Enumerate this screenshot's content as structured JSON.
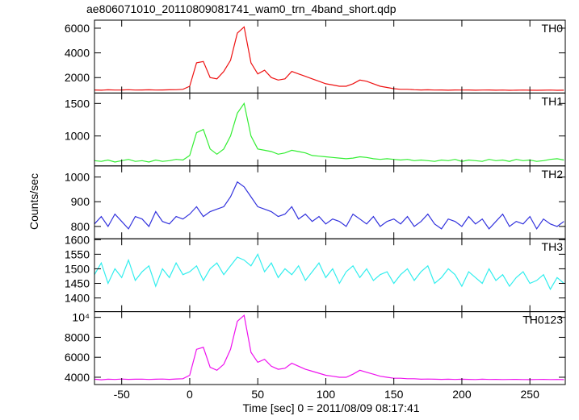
{
  "title": "ae806071010_20110809081741_wam0_trn_4band_short.qdp",
  "y_label": "Counts/sec",
  "x_label": "Time [sec] 0 = 2011/08/09 08:17:41",
  "chart_data": [
    {
      "type": "line",
      "label": "TH0",
      "color": "#ee1111",
      "x": [
        -70,
        -65,
        -60,
        -55,
        -50,
        -45,
        -40,
        -35,
        -30,
        -25,
        -20,
        -15,
        -10,
        -5,
        0,
        5,
        10,
        15,
        20,
        25,
        30,
        35,
        40,
        45,
        50,
        55,
        60,
        65,
        70,
        75,
        80,
        85,
        90,
        95,
        100,
        105,
        110,
        115,
        120,
        125,
        130,
        135,
        140,
        145,
        150,
        155,
        160,
        165,
        170,
        175,
        180,
        185,
        190,
        195,
        200,
        205,
        210,
        215,
        220,
        225,
        230,
        235,
        240,
        245,
        250,
        255,
        260,
        265,
        270,
        275
      ],
      "values": [
        1000,
        980,
        1010,
        990,
        1000,
        1020,
        990,
        1000,
        1010,
        990,
        1000,
        1010,
        1020,
        1050,
        1300,
        3200,
        3300,
        2000,
        1900,
        2500,
        3400,
        5600,
        6100,
        3200,
        2300,
        2600,
        2000,
        1800,
        1900,
        2500,
        2300,
        2100,
        1900,
        1700,
        1500,
        1400,
        1300,
        1300,
        1500,
        1800,
        1700,
        1500,
        1300,
        1200,
        1100,
        1050,
        1050,
        1020,
        1000,
        1010,
        990,
        1000,
        980,
        1000,
        990,
        1000,
        980,
        990,
        1000,
        980,
        990,
        970,
        980,
        990,
        980,
        970,
        980,
        990,
        970,
        980
      ],
      "xlim": [
        -70,
        276
      ],
      "ylim": [
        750,
        6650
      ],
      "yticks": [
        2000,
        4000,
        6000
      ]
    },
    {
      "type": "line",
      "label": "TH1",
      "color": "#33ee33",
      "x": [
        -70,
        -65,
        -60,
        -55,
        -50,
        -45,
        -40,
        -35,
        -30,
        -25,
        -20,
        -15,
        -10,
        -5,
        0,
        5,
        10,
        15,
        20,
        25,
        30,
        35,
        40,
        45,
        50,
        55,
        60,
        65,
        70,
        75,
        80,
        85,
        90,
        95,
        100,
        105,
        110,
        115,
        120,
        125,
        130,
        135,
        140,
        145,
        150,
        155,
        160,
        165,
        170,
        175,
        180,
        185,
        190,
        195,
        200,
        205,
        210,
        215,
        220,
        225,
        230,
        235,
        240,
        245,
        250,
        255,
        260,
        265,
        270,
        275
      ],
      "values": [
        620,
        610,
        630,
        600,
        620,
        640,
        610,
        620,
        600,
        630,
        610,
        620,
        640,
        630,
        700,
        1050,
        1100,
        800,
        720,
        800,
        1000,
        1350,
        1500,
        1000,
        800,
        780,
        760,
        720,
        740,
        780,
        760,
        740,
        700,
        690,
        680,
        670,
        660,
        650,
        660,
        680,
        670,
        650,
        640,
        650,
        640,
        630,
        640,
        620,
        630,
        620,
        610,
        630,
        620,
        640,
        610,
        630,
        620,
        610,
        640,
        620,
        630,
        610,
        640,
        620,
        630,
        610,
        620,
        640,
        650,
        630
      ],
      "xlim": [
        -70,
        276
      ],
      "ylim": [
        540,
        1660
      ],
      "yticks": [
        1000,
        1500
      ]
    },
    {
      "type": "line",
      "label": "TH2",
      "color": "#3333dd",
      "x": [
        -70,
        -65,
        -60,
        -55,
        -50,
        -45,
        -40,
        -35,
        -30,
        -25,
        -20,
        -15,
        -10,
        -5,
        0,
        5,
        10,
        15,
        20,
        25,
        30,
        35,
        40,
        45,
        50,
        55,
        60,
        65,
        70,
        75,
        80,
        85,
        90,
        95,
        100,
        105,
        110,
        115,
        120,
        125,
        130,
        135,
        140,
        145,
        150,
        155,
        160,
        165,
        170,
        175,
        180,
        185,
        190,
        195,
        200,
        205,
        210,
        215,
        220,
        225,
        230,
        235,
        240,
        245,
        250,
        255,
        260,
        265,
        270,
        275
      ],
      "values": [
        810,
        840,
        800,
        850,
        820,
        790,
        840,
        830,
        800,
        860,
        820,
        810,
        840,
        830,
        850,
        880,
        840,
        860,
        870,
        880,
        920,
        980,
        960,
        920,
        880,
        870,
        860,
        840,
        850,
        880,
        830,
        850,
        820,
        840,
        810,
        830,
        820,
        800,
        850,
        830,
        810,
        840,
        800,
        820,
        830,
        810,
        840,
        800,
        820,
        850,
        810,
        790,
        830,
        820,
        800,
        840,
        810,
        830,
        790,
        820,
        850,
        800,
        820,
        810,
        840,
        790,
        830,
        810,
        800,
        820
      ],
      "xlim": [
        -70,
        276
      ],
      "ylim": [
        750,
        1045
      ],
      "yticks": [
        800,
        900,
        1000
      ]
    },
    {
      "type": "line",
      "label": "TH3",
      "color": "#33eeee",
      "x": [
        -70,
        -65,
        -60,
        -55,
        -50,
        -45,
        -40,
        -35,
        -30,
        -25,
        -20,
        -15,
        -10,
        -5,
        0,
        5,
        10,
        15,
        20,
        25,
        30,
        35,
        40,
        45,
        50,
        55,
        60,
        65,
        70,
        75,
        80,
        85,
        90,
        95,
        100,
        105,
        110,
        115,
        120,
        125,
        130,
        135,
        140,
        145,
        150,
        155,
        160,
        165,
        170,
        175,
        180,
        185,
        190,
        195,
        200,
        205,
        210,
        215,
        220,
        225,
        230,
        235,
        240,
        245,
        250,
        255,
        260,
        265,
        270,
        275
      ],
      "values": [
        1480,
        1520,
        1450,
        1500,
        1470,
        1530,
        1460,
        1490,
        1510,
        1440,
        1500,
        1470,
        1520,
        1480,
        1490,
        1510,
        1460,
        1500,
        1520,
        1480,
        1510,
        1540,
        1530,
        1510,
        1550,
        1490,
        1520,
        1470,
        1500,
        1480,
        1510,
        1460,
        1490,
        1520,
        1470,
        1500,
        1450,
        1490,
        1510,
        1470,
        1500,
        1460,
        1480,
        1490,
        1450,
        1480,
        1500,
        1460,
        1490,
        1510,
        1450,
        1470,
        1500,
        1480,
        1440,
        1490,
        1470,
        1450,
        1500,
        1460,
        1480,
        1440,
        1470,
        1490,
        1450,
        1460,
        1480,
        1430,
        1470,
        1450
      ],
      "xlim": [
        -70,
        276
      ],
      "ylim": [
        1353,
        1603
      ],
      "yticks": [
        1400,
        1450,
        1500,
        1550,
        1600
      ]
    },
    {
      "type": "line",
      "label": "TH0123",
      "color": "#ee11ee",
      "x": [
        -70,
        -65,
        -60,
        -55,
        -50,
        -45,
        -40,
        -35,
        -30,
        -25,
        -20,
        -15,
        -10,
        -5,
        0,
        5,
        10,
        15,
        20,
        25,
        30,
        35,
        40,
        45,
        50,
        55,
        60,
        65,
        70,
        75,
        80,
        85,
        90,
        95,
        100,
        105,
        110,
        115,
        120,
        125,
        130,
        135,
        140,
        145,
        150,
        155,
        160,
        165,
        170,
        175,
        180,
        185,
        190,
        195,
        200,
        205,
        210,
        215,
        220,
        225,
        230,
        235,
        240,
        245,
        250,
        255,
        260,
        265,
        270,
        275
      ],
      "values": [
        3800,
        3750,
        3800,
        3780,
        3820,
        3790,
        3800,
        3810,
        3780,
        3800,
        3820,
        3790,
        3830,
        3850,
        4200,
        6800,
        7000,
        5000,
        4700,
        5300,
        6800,
        9600,
        10200,
        6500,
        5500,
        5800,
        5100,
        4800,
        4900,
        5400,
        5100,
        4800,
        4600,
        4400,
        4200,
        4100,
        4000,
        4000,
        4300,
        4700,
        4500,
        4300,
        4100,
        4000,
        3900,
        3900,
        3850,
        3850,
        3800,
        3820,
        3800,
        3790,
        3800,
        3780,
        3800,
        3790,
        3770,
        3800,
        3780,
        3790,
        3770,
        3780,
        3790,
        3770,
        3760,
        3780,
        3790,
        3770,
        3780,
        3760
      ],
      "xlim": [
        -70,
        276
      ],
      "ylim": [
        3270,
        10570
      ],
      "yticks": [
        4000,
        6000,
        8000,
        {
          "value": 10000,
          "label": "10⁴"
        }
      ],
      "xticks": [
        -50,
        0,
        50,
        100,
        150,
        200,
        250
      ]
    }
  ]
}
